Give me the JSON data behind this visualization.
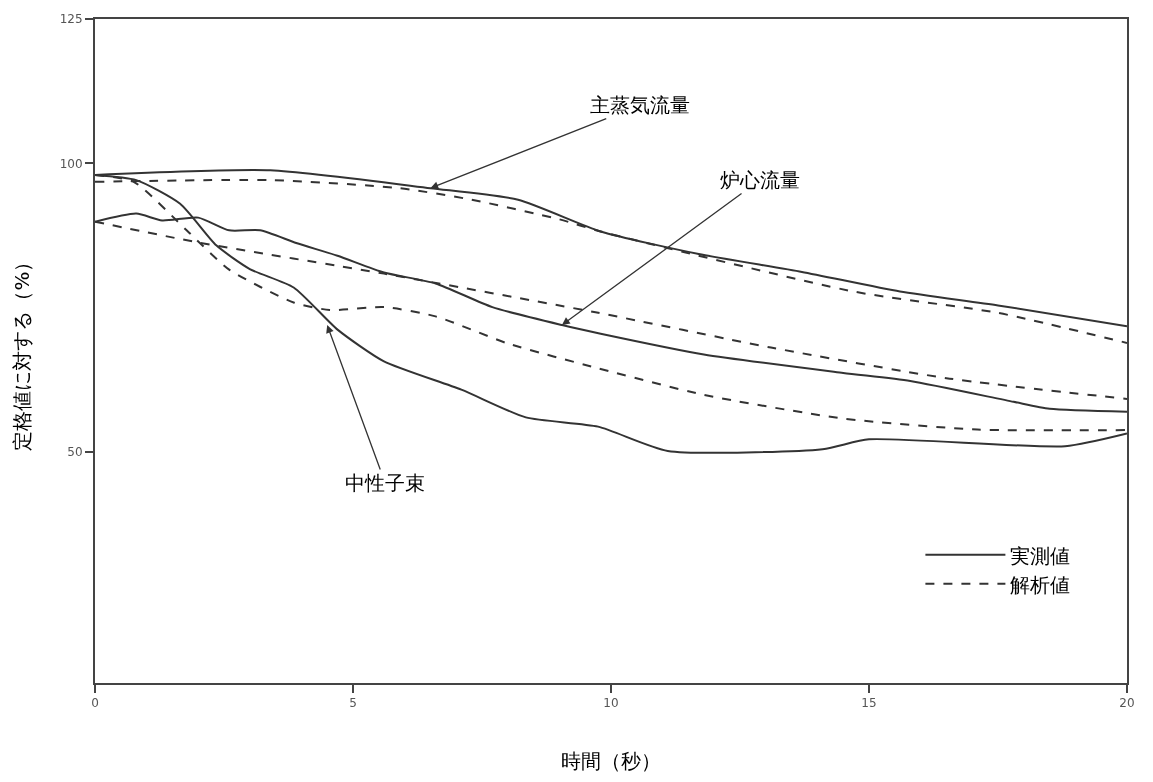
{
  "chart_data": {
    "type": "line",
    "xlabel": "時間（秒）",
    "ylabel": "定格値に対する（%）",
    "xlim": [
      0,
      20
    ],
    "xticks": [
      0,
      5,
      10,
      15,
      20
    ],
    "ylim": [
      10,
      125
    ],
    "yticks": [
      50,
      100,
      125
    ],
    "legend": "bottom right",
    "marker": "none",
    "series": [
      {
        "name": "実測値",
        "color": "#333333",
        "line_style": "solid",
        "x": [
          0,
          3.4,
          6.5,
          8.2,
          9.8,
          11.7,
          13.7,
          15.6,
          17.5,
          20
        ],
        "values": [
          98,
          98.8,
          95.7,
          93.7,
          88.2,
          84.3,
          81.2,
          77.8,
          75.4,
          71.8
        ]
      },
      {
        "name": "解析値",
        "color": "#333333",
        "line_style": "dashed",
        "x": [
          0,
          3.4,
          5.9,
          7.3,
          9,
          9.8,
          14.7,
          17.5,
          20
        ],
        "values": [
          96.8,
          97.1,
          95.7,
          93.7,
          90.3,
          88.2,
          77.8,
          74.1,
          68.9
        ]
      },
      {
        "color": "#333333",
        "line_style": "solid",
        "x": [
          0,
          0.8,
          1.3,
          2.0,
          2.6,
          3.2,
          3.9,
          4.7,
          5.6,
          6.6,
          7.7,
          9.05,
          9.8,
          11.8,
          14.5,
          15.8,
          17.8,
          18.5,
          20
        ],
        "values": [
          89.9,
          91.3,
          90.1,
          90.6,
          88.4,
          88.4,
          86.2,
          84,
          81.1,
          79.2,
          75.1,
          72,
          70.5,
          66.9,
          63.7,
          62.3,
          58.7,
          57.5,
          57
        ]
      },
      {
        "color": "#333333",
        "line_style": "dashed",
        "x": [
          0,
          2.0,
          5.6,
          9.7,
          13.1,
          16.5,
          20
        ],
        "values": [
          89.9,
          86.3,
          80.9,
          74.2,
          68.1,
          62.8,
          59.2
        ]
      },
      {
        "color": "#333333",
        "line_style": "solid",
        "x": [
          0,
          0.8,
          1.65,
          2.35,
          3.0,
          3.85,
          4.7,
          5.6,
          7.1,
          8.35,
          9.75,
          11.1,
          14.1,
          15,
          18.8,
          20
        ],
        "values": [
          98,
          97.1,
          93,
          85.8,
          81.7,
          78.5,
          71.2,
          65.7,
          60.8,
          56,
          54.4,
          50.2,
          50.5,
          52.2,
          51,
          53.2
        ]
      },
      {
        "color": "#333333",
        "line_style": "dashed",
        "x": [
          0,
          0.75,
          1.8,
          2.6,
          3.85,
          4.55,
          5.6,
          6.6,
          8,
          9.75,
          11.8,
          14.5,
          17.1,
          20
        ],
        "values": [
          98,
          96.8,
          88.2,
          81.6,
          75.9,
          74.6,
          75.1,
          73.5,
          68.8,
          64.5,
          59.9,
          55.8,
          53.9,
          53.8
        ]
      }
    ],
    "annotations": [
      {
        "text": "主蒸気流量",
        "x": 6.5,
        "y": 95.7
      },
      {
        "text": "炉心流量",
        "x": 9.05,
        "y": 72
      },
      {
        "text": "中性子束",
        "x": 4.5,
        "y": 72
      }
    ]
  }
}
